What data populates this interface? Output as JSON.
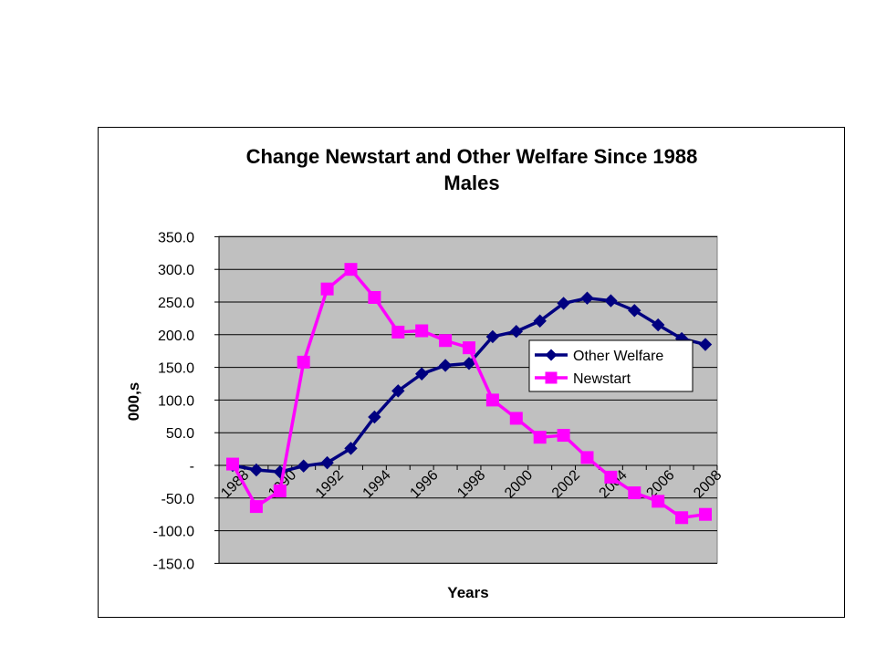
{
  "chart_data": {
    "type": "line",
    "title": "Change Newstart and Other Welfare Since 1988",
    "subtitle": "Males",
    "xlabel": "Years",
    "ylabel": "000,s",
    "ylim": [
      -150,
      350
    ],
    "y_tick_labels": [
      "350.0",
      "300.0",
      "250.0",
      "200.0",
      "150.0",
      "100.0",
      "50.0",
      "-",
      "-50.0",
      "-100.0",
      "-150.0"
    ],
    "y_ticks": [
      350,
      300,
      250,
      200,
      150,
      100,
      50,
      0,
      -50,
      -100,
      -150
    ],
    "x": [
      1988,
      1989,
      1990,
      1991,
      1992,
      1993,
      1994,
      1995,
      1996,
      1997,
      1998,
      1999,
      2000,
      2001,
      2002,
      2003,
      2004,
      2005,
      2006,
      2007,
      2008
    ],
    "x_tick_labels": [
      "1988",
      "1990",
      "1992",
      "1994",
      "1996",
      "1998",
      "2000",
      "2002",
      "2004",
      "2006",
      "2008"
    ],
    "grid": true,
    "legend_position": "right",
    "plot_background": "#c0c0c0",
    "series": [
      {
        "name": "Other Welfare",
        "color": "#000080",
        "marker": "diamond",
        "values": [
          0,
          -7,
          -10,
          -1,
          4,
          26,
          74,
          114,
          140,
          153,
          156,
          197,
          205,
          221,
          248,
          256,
          252,
          237,
          215,
          194,
          185
        ]
      },
      {
        "name": "Newstart",
        "color": "#ff00ff",
        "marker": "square",
        "values": [
          2,
          -63,
          -39,
          158,
          270,
          300,
          257,
          204,
          206,
          191,
          180,
          100,
          72,
          43,
          46,
          12,
          -18,
          -42,
          -55,
          -80,
          -75
        ]
      }
    ]
  }
}
